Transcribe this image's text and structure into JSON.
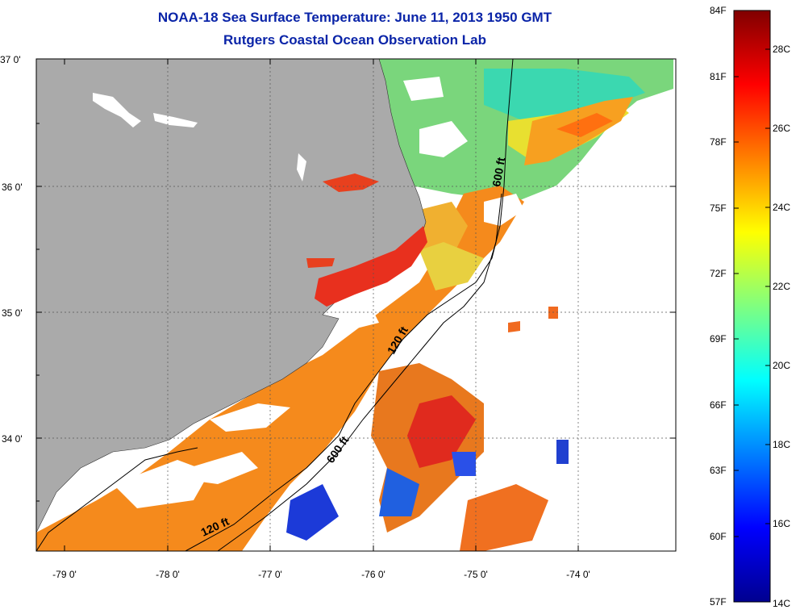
{
  "title": {
    "line1": "NOAA-18 Sea Surface Temperature:  June 11, 2013 1950 GMT",
    "line2": "Rutgers Coastal Ocean Observation Lab"
  },
  "map": {
    "lat_labels": [
      "37 0'",
      "36 0'",
      "35 0'",
      "34 0'"
    ],
    "lon_labels": [
      "-79 0'",
      "-78 0'",
      "-77 0'",
      "-76 0'",
      "-75 0'",
      "-74 0'"
    ],
    "contours": {
      "shelf_label": "120 ft",
      "slope_label": "600 ft"
    },
    "colors": {
      "land": "#aaaaaa",
      "cloud": "#ffffff"
    }
  },
  "colorbar": {
    "fahrenheit_labels": [
      "84F",
      "81F",
      "78F",
      "75F",
      "72F",
      "69F",
      "66F",
      "63F",
      "60F",
      "57F"
    ],
    "celsius_labels": [
      "28C",
      "26C",
      "24C",
      "22C",
      "20C",
      "18C",
      "16C",
      "14C"
    ],
    "range_f": [
      57,
      84
    ],
    "range_c": [
      14,
      29
    ],
    "colormap": "jet"
  }
}
